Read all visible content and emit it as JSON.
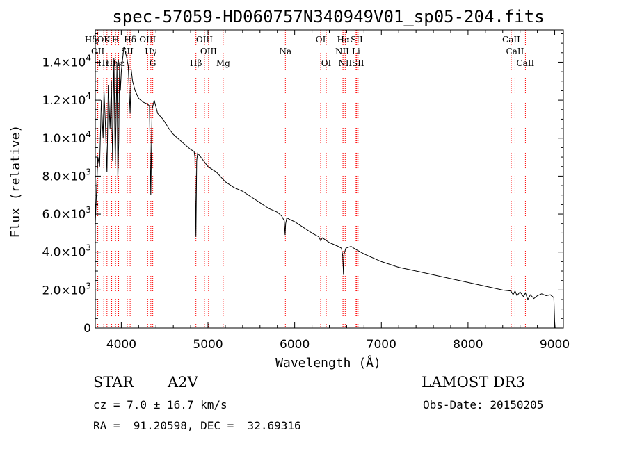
{
  "info": {
    "object_class": "STAR",
    "subclass": "A2V",
    "survey": "LAMOST DR3",
    "cz": "cz = 7.0 ± 16.7 km/s",
    "obs_date": "Obs-Date: 20150205",
    "radec": "RA =  91.20598, DEC =  32.69316"
  },
  "chart_data": {
    "type": "line",
    "title": "spec-57059-HD060757N340949V01_sp05-204.fits",
    "xlabel": "Wavelength (Å)",
    "ylabel": "Flux (relative)",
    "xlim": [
      3700,
      9100
    ],
    "ylim": [
      0,
      15700
    ],
    "x_ticks": [
      4000,
      5000,
      6000,
      7000,
      8000,
      9000
    ],
    "y_ticks": [
      {
        "value": 0,
        "mant": "0",
        "exp": ""
      },
      {
        "value": 2000,
        "mant": "2.0×10",
        "exp": "3"
      },
      {
        "value": 4000,
        "mant": "4.0×10",
        "exp": "3"
      },
      {
        "value": 6000,
        "mant": "6.0×10",
        "exp": "3"
      },
      {
        "value": 8000,
        "mant": "8.0×10",
        "exp": "3"
      },
      {
        "value": 10000,
        "mant": "1.0×10",
        "exp": "4"
      },
      {
        "value": 12000,
        "mant": "1.2×10",
        "exp": "4"
      },
      {
        "value": 14000,
        "mant": "1.4×10",
        "exp": "4"
      }
    ],
    "series": [
      {
        "name": "spectrum",
        "x": [
          3700,
          3730,
          3750,
          3770,
          3790,
          3800,
          3815,
          3835,
          3850,
          3870,
          3885,
          3900,
          3915,
          3930,
          3950,
          3960,
          3970,
          3980,
          3990,
          4000,
          4030,
          4060,
          4080,
          4102,
          4115,
          4130,
          4160,
          4200,
          4250,
          4300,
          4325,
          4340,
          4355,
          4380,
          4420,
          4480,
          4550,
          4600,
          4650,
          4700,
          4750,
          4800,
          4840,
          4850,
          4861,
          4870,
          4880,
          4900,
          4950,
          5000,
          5100,
          5200,
          5300,
          5400,
          5500,
          5600,
          5700,
          5800,
          5850,
          5880,
          5890,
          5896,
          5910,
          5950,
          6000,
          6100,
          6200,
          6280,
          6300,
          6320,
          6400,
          6500,
          6540,
          6555,
          6563,
          6570,
          6590,
          6650,
          6700,
          6800,
          6900,
          7000,
          7200,
          7400,
          7600,
          7800,
          8000,
          8200,
          8400,
          8495,
          8520,
          8542,
          8565,
          8600,
          8640,
          8662,
          8690,
          8720,
          8760,
          8800,
          8850,
          8900,
          8950,
          8990,
          9000,
          9005
        ],
        "y": [
          5500,
          9000,
          8500,
          12000,
          10000,
          12500,
          11000,
          8200,
          12800,
          10500,
          13000,
          8800,
          14200,
          8600,
          13800,
          7800,
          9800,
          14000,
          12500,
          13500,
          14800,
          14300,
          13800,
          11300,
          13600,
          13000,
          12500,
          12100,
          11900,
          11800,
          11700,
          7000,
          11500,
          12000,
          11300,
          11000,
          10500,
          10200,
          10000,
          9800,
          9600,
          9400,
          9300,
          9000,
          4800,
          8800,
          9200,
          9100,
          8800,
          8500,
          8200,
          7700,
          7400,
          7200,
          6900,
          6600,
          6300,
          6100,
          5900,
          5650,
          4900,
          5500,
          5800,
          5700,
          5600,
          5300,
          5000,
          4800,
          4600,
          4750,
          4500,
          4300,
          4200,
          3800,
          2800,
          3900,
          4200,
          4300,
          4150,
          3900,
          3700,
          3500,
          3200,
          3000,
          2800,
          2600,
          2400,
          2200,
          2000,
          1950,
          1750,
          1950,
          1700,
          1900,
          1650,
          1850,
          1500,
          1750,
          1550,
          1700,
          1800,
          1700,
          1750,
          1600,
          300,
          0
        ]
      }
    ],
    "spectral_lines": [
      {
        "label": "HδOII",
        "wave": 3727,
        "row": 1
      },
      {
        "label": "OII",
        "wave": 3729,
        "row": 2
      },
      {
        "label": "Hε",
        "wave": 3798,
        "row": 3
      },
      {
        "label": "K",
        "wave": 3835,
        "row": 1
      },
      {
        "label": "Hη",
        "wave": 3889,
        "row": 3
      },
      {
        "label": "H",
        "wave": 3934,
        "row": 1
      },
      {
        "label": "Hε",
        "wave": 3969,
        "row": 3
      },
      {
        "label": "SII",
        "wave": 4069,
        "row": 2
      },
      {
        "label": "Hδ",
        "wave": 4102,
        "row": 1
      },
      {
        "label": "OIII",
        "wave": 4304,
        "row": 1
      },
      {
        "label": "Hγ",
        "wave": 4341,
        "row": 2
      },
      {
        "label": "G",
        "wave": 4363,
        "row": 3
      },
      {
        "label": "Hβ",
        "wave": 4861,
        "row": 3
      },
      {
        "label": "OIII",
        "wave": 4959,
        "row": 1
      },
      {
        "label": "OIII",
        "wave": 5007,
        "row": 2
      },
      {
        "label": "Mg",
        "wave": 5175,
        "row": 3
      },
      {
        "label": "Na",
        "wave": 5893,
        "row": 2
      },
      {
        "label": "OI",
        "wave": 6300,
        "row": 1
      },
      {
        "label": "OI",
        "wave": 6364,
        "row": 3
      },
      {
        "label": "NII",
        "wave": 6548,
        "row": 2
      },
      {
        "label": "Hα",
        "wave": 6563,
        "row": 1
      },
      {
        "label": "NII",
        "wave": 6583,
        "row": 3
      },
      {
        "label": "SII",
        "wave": 6716,
        "row": 1
      },
      {
        "label": "Li",
        "wave": 6708,
        "row": 2
      },
      {
        "label": "SII",
        "wave": 6731,
        "row": 3
      },
      {
        "label": "CaII",
        "wave": 8498,
        "row": 1
      },
      {
        "label": "CaII",
        "wave": 8542,
        "row": 2
      },
      {
        "label": "CaII",
        "wave": 8662,
        "row": 3
      }
    ],
    "line_color": "#000000",
    "marker_color": "#ff0000"
  }
}
